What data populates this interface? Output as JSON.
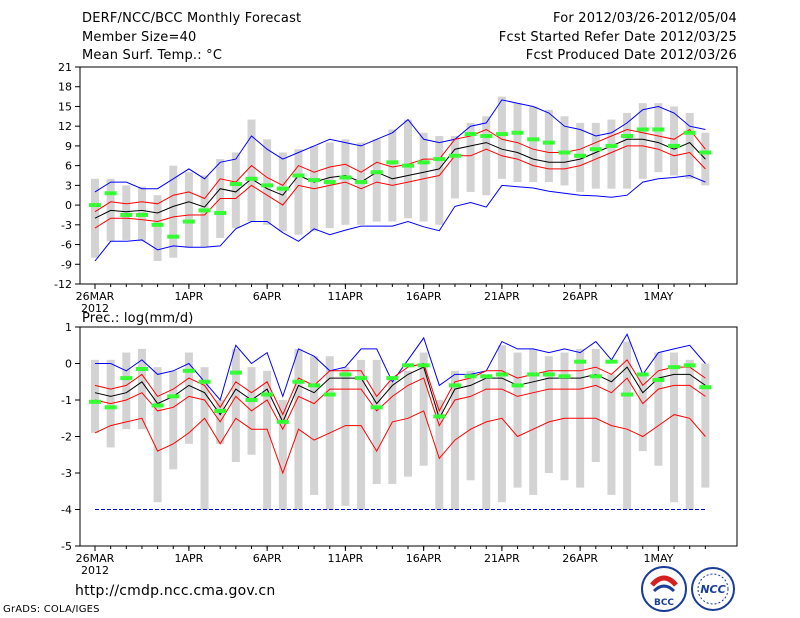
{
  "header": {
    "title": "DERF/NCC/BCC Monthly Forecast",
    "member_size": "Member Size=40",
    "variable": "Mean Surf. Temp.: °C",
    "forecast_period": "For 2012/03/26-2012/05/04",
    "fcst_started": "Fcst Started Refer Date 2012/03/25",
    "fcst_produced": "Fcst Produced Date 2012/03/26"
  },
  "panel2_title": "Prec.: log(mm/d)",
  "footer": {
    "url": "http://cmdp.ncc.cma.gov.cn",
    "grads": "GrADS: COLA/IGES",
    "logo_bcc": "BCC",
    "logo_ncc": "NCC"
  },
  "colors": {
    "bar": "#d3d3d3",
    "mean": "#000000",
    "spread": "#ff0000",
    "extreme": "#0000ff",
    "marker": "#33ff33"
  },
  "chart_data": [
    {
      "type": "line",
      "title": "Mean Surf. Temp.: °C",
      "x_start": "2012-03-26",
      "n_days": 40,
      "xtick_labels": [
        "26MAR",
        "1APR",
        "6APR",
        "11APR",
        "16APR",
        "21APR",
        "26APR",
        "1MAY"
      ],
      "xtick_day_index": [
        0,
        6,
        11,
        16,
        21,
        26,
        31,
        36
      ],
      "xtick_year": "2012",
      "ylim": [
        -12,
        21
      ],
      "yticks": [
        -12,
        -9,
        -6,
        -3,
        0,
        3,
        6,
        9,
        12,
        15,
        18,
        21
      ],
      "series": [
        {
          "name": "max",
          "color": "blue",
          "values": [
            -8.5,
            -5.5,
            -5.5,
            -5.3,
            -6.8,
            -6.2,
            -6.4,
            -6.4,
            -6.2,
            -3.6,
            -2.5,
            -2.5,
            -4.2,
            -5.5,
            -3.6,
            -4.5,
            -3.8,
            -3.2,
            -3.2,
            -3.2,
            -2.5,
            -3.3,
            -3.9,
            -0.2,
            0.4,
            -0.3,
            3.0,
            2.8,
            2.6,
            2.1,
            1.8,
            1.5,
            1.4,
            1.2,
            1.5,
            3.5,
            4.0,
            4.2,
            4.5,
            3.5
          ]
        },
        {
          "name": "mean",
          "color": "black",
          "values": [
            -2.0,
            -0.8,
            -1.0,
            -0.8,
            -1.2,
            -0.2,
            0.5,
            -0.3,
            2.5,
            2.0,
            4.0,
            2.5,
            1.5,
            4.5,
            3.5,
            4.2,
            4.5,
            3.5,
            5.0,
            4.0,
            4.5,
            5.0,
            5.5,
            8.5,
            9.0,
            9.5,
            8.5,
            8.0,
            7.0,
            6.5,
            6.5,
            7.0,
            8.0,
            9.0,
            10.0,
            10.0,
            9.5,
            8.5,
            9.5,
            7.0
          ]
        },
        {
          "name": "upper",
          "color": "red",
          "values": [
            -1.0,
            0.5,
            0.2,
            0.5,
            0.2,
            1.5,
            2.0,
            1.0,
            4.0,
            3.5,
            6.0,
            4.2,
            3.0,
            6.0,
            5.0,
            5.8,
            6.2,
            5.0,
            6.5,
            5.8,
            6.2,
            7.0,
            7.0,
            10.0,
            10.5,
            11.5,
            10.0,
            9.5,
            8.5,
            8.0,
            8.0,
            8.5,
            9.5,
            10.5,
            11.5,
            11.0,
            10.5,
            10.0,
            11.5,
            8.5
          ]
        },
        {
          "name": "lower",
          "color": "red",
          "values": [
            -3.5,
            -2.0,
            -2.0,
            -2.2,
            -2.5,
            -1.8,
            -1.5,
            -1.5,
            1.0,
            1.0,
            3.0,
            1.5,
            0.0,
            3.0,
            2.5,
            3.0,
            3.5,
            2.5,
            3.5,
            3.0,
            3.5,
            4.0,
            4.5,
            7.5,
            7.5,
            8.5,
            7.5,
            7.0,
            6.0,
            5.5,
            5.5,
            6.0,
            7.0,
            8.0,
            9.0,
            9.0,
            8.5,
            7.5,
            8.0,
            5.5
          ]
        },
        {
          "name": "min_extreme",
          "color": "blue",
          "values": [
            2.0,
            3.5,
            3.5,
            2.5,
            2.5,
            4.0,
            5.5,
            4.0,
            6.5,
            7.0,
            10.5,
            8.5,
            7.0,
            8.0,
            9.0,
            10.0,
            9.5,
            9.0,
            10.0,
            11.0,
            13.0,
            10.0,
            9.5,
            10.0,
            12.0,
            12.5,
            16.0,
            15.5,
            15.0,
            14.0,
            12.0,
            11.5,
            10.5,
            11.0,
            12.5,
            14.5,
            15.0,
            14.0,
            12.0,
            11.5
          ]
        },
        {
          "name": "observed",
          "color": "green",
          "values": [
            0.0,
            1.8,
            -1.5,
            -1.5,
            -3.0,
            -4.8,
            -2.5,
            -0.8,
            -1.2,
            3.2,
            4.0,
            3.0,
            2.5,
            4.5,
            3.8,
            3.5,
            4.2,
            3.5,
            5.0,
            6.5,
            6.0,
            6.5,
            7.0,
            7.5,
            10.8,
            10.5,
            10.8,
            11.0,
            10.0,
            9.5,
            8.0,
            7.5,
            8.5,
            9.0,
            10.5,
            11.5,
            11.5,
            9.0,
            11.0,
            8.0
          ]
        },
        {
          "name": "bar_top",
          "color": "gray",
          "values": [
            4.0,
            4.0,
            3.0,
            2.8,
            1.5,
            6.0,
            5.0,
            4.5,
            7.0,
            8.0,
            13.0,
            10.0,
            8.0,
            8.5,
            9.0,
            9.5,
            10.0,
            9.5,
            10.0,
            11.5,
            13.0,
            11.0,
            10.5,
            10.5,
            12.5,
            13.5,
            16.5,
            15.5,
            15.0,
            14.5,
            13.5,
            12.5,
            12.5,
            13.0,
            14.0,
            15.5,
            15.5,
            15.0,
            14.0,
            11.0
          ]
        },
        {
          "name": "bar_bottom",
          "color": "gray",
          "values": [
            -8.0,
            -5.5,
            -5.3,
            -5.5,
            -8.5,
            -8.0,
            -6.5,
            -6.3,
            -5.0,
            -3.5,
            -2.5,
            -3.0,
            -4.0,
            -4.5,
            -4.0,
            -3.5,
            -3.0,
            -3.0,
            -2.5,
            -2.5,
            -2.0,
            -2.5,
            -3.0,
            1.0,
            2.0,
            1.5,
            4.0,
            3.5,
            3.5,
            3.5,
            3.0,
            2.0,
            2.5,
            2.5,
            2.5,
            4.0,
            5.0,
            4.5,
            4.0,
            3.0
          ]
        }
      ]
    },
    {
      "type": "line",
      "title": "Prec.: log(mm/d)",
      "x_start": "2012-03-26",
      "n_days": 40,
      "xtick_labels": [
        "26MAR",
        "1APR",
        "6APR",
        "11APR",
        "16APR",
        "21APR",
        "26APR",
        "1MAY"
      ],
      "xtick_day_index": [
        0,
        6,
        11,
        16,
        21,
        26,
        31,
        36
      ],
      "xtick_year": "2012",
      "ylim": [
        -5,
        1
      ],
      "yticks": [
        -5,
        -4,
        -3,
        -2,
        -1,
        0,
        1
      ],
      "series": [
        {
          "name": "max",
          "color": "blue",
          "values": [
            0.0,
            0.0,
            -0.2,
            0.1,
            -0.3,
            -0.2,
            0.0,
            -0.5,
            -1.0,
            0.5,
            0.0,
            0.3,
            -0.9,
            0.4,
            0.2,
            -0.2,
            -0.1,
            0.4,
            0.4,
            -0.5,
            0.1,
            0.7,
            -0.6,
            -0.3,
            -0.3,
            -0.2,
            0.6,
            0.4,
            0.4,
            0.3,
            0.4,
            0.3,
            0.6,
            0.1,
            0.8,
            -0.3,
            0.3,
            0.4,
            0.5,
            0.0
          ]
        },
        {
          "name": "mean",
          "color": "black",
          "values": [
            -0.8,
            -0.9,
            -0.8,
            -0.5,
            -1.1,
            -0.9,
            -0.6,
            -0.8,
            -1.4,
            -0.7,
            -1.0,
            -0.7,
            -1.6,
            -0.6,
            -0.8,
            -0.4,
            -0.4,
            -0.4,
            -1.1,
            -0.6,
            -0.3,
            -0.1,
            -1.5,
            -0.7,
            -0.6,
            -0.4,
            -0.4,
            -0.6,
            -0.5,
            -0.4,
            -0.4,
            -0.4,
            -0.3,
            -0.5,
            -0.1,
            -0.8,
            -0.4,
            -0.3,
            -0.3,
            -0.6
          ]
        },
        {
          "name": "upper",
          "color": "red",
          "values": [
            -0.6,
            -0.7,
            -0.6,
            -0.3,
            -0.9,
            -0.7,
            -0.4,
            -0.6,
            -1.2,
            -0.5,
            -0.8,
            -0.5,
            -1.4,
            -0.4,
            -0.6,
            -0.2,
            -0.2,
            -0.2,
            -0.9,
            -0.4,
            -0.1,
            0.0,
            -1.3,
            -0.5,
            -0.4,
            -0.2,
            -0.2,
            -0.4,
            -0.3,
            -0.2,
            -0.2,
            -0.2,
            -0.1,
            -0.3,
            0.1,
            -0.6,
            -0.2,
            -0.1,
            -0.1,
            -0.4
          ]
        },
        {
          "name": "lower",
          "color": "red",
          "values": [
            -1.0,
            -1.1,
            -1.0,
            -0.8,
            -1.3,
            -1.2,
            -0.9,
            -1.0,
            -1.6,
            -0.9,
            -1.3,
            -1.0,
            -1.8,
            -0.9,
            -1.1,
            -0.7,
            -0.7,
            -0.7,
            -1.3,
            -0.9,
            -0.6,
            -0.4,
            -1.7,
            -1.0,
            -0.9,
            -0.7,
            -0.7,
            -0.9,
            -0.8,
            -0.7,
            -0.7,
            -0.7,
            -0.6,
            -0.8,
            -0.4,
            -1.1,
            -0.7,
            -0.6,
            -0.6,
            -0.9
          ]
        },
        {
          "name": "min",
          "color": "red",
          "values": [
            -1.9,
            -1.7,
            -1.6,
            -1.5,
            -2.4,
            -2.2,
            -1.9,
            -1.5,
            -2.2,
            -1.5,
            -1.8,
            -1.8,
            -3.0,
            -1.8,
            -2.1,
            -1.9,
            -1.7,
            -1.7,
            -2.4,
            -1.6,
            -1.5,
            -1.3,
            -2.6,
            -2.1,
            -1.8,
            -1.6,
            -1.5,
            -2.0,
            -1.8,
            -1.6,
            -1.5,
            -1.5,
            -1.5,
            -1.7,
            -1.8,
            -2.0,
            -1.7,
            -1.4,
            -1.5,
            -2.0
          ]
        },
        {
          "name": "floor",
          "color": "blue",
          "values": [
            -4.0,
            -4.0,
            -4.0,
            -4.0,
            -4.0,
            -4.0,
            -4.0,
            -4.0,
            -4.0,
            -4.0,
            -4.0,
            -4.0,
            -4.0,
            -4.0,
            -4.0,
            -4.0,
            -4.0,
            -4.0,
            -4.0,
            -4.0,
            -4.0,
            -4.0,
            -4.0,
            -4.0,
            -4.0,
            -4.0,
            -4.0,
            -4.0,
            -4.0,
            -4.0,
            -4.0,
            -4.0,
            -4.0,
            -4.0,
            -4.0,
            -4.0,
            -4.0,
            -4.0,
            -4.0,
            -4.0
          ]
        },
        {
          "name": "observed",
          "color": "green",
          "values": [
            -1.05,
            -1.2,
            -0.4,
            -0.15,
            -1.15,
            -0.9,
            -0.2,
            -0.5,
            -1.3,
            -0.25,
            -1.0,
            -0.85,
            -1.6,
            -0.5,
            -0.6,
            -0.85,
            -0.3,
            -0.4,
            -1.2,
            -0.4,
            -0.05,
            -0.05,
            -1.45,
            -0.6,
            -0.35,
            -0.35,
            -0.3,
            -0.6,
            -0.3,
            -0.3,
            -0.35,
            0.05,
            -0.35,
            0.05,
            -0.85,
            -0.3,
            -0.45,
            -0.1,
            -0.05,
            -0.65
          ]
        },
        {
          "name": "bar_top",
          "color": "gray",
          "values": [
            0.1,
            0.1,
            0.3,
            0.4,
            -0.1,
            -0.2,
            0.3,
            -0.1,
            -1.0,
            0.4,
            -0.1,
            -0.2,
            -1.0,
            0.4,
            0.2,
            0.2,
            -0.1,
            0.1,
            0.1,
            -0.4,
            -0.2,
            0.3,
            -1.0,
            -0.2,
            -0.2,
            -0.3,
            0.5,
            0.3,
            0.4,
            0.2,
            0.3,
            0.4,
            0.4,
            -0.3,
            0.6,
            -0.3,
            0.3,
            0.3,
            0.1,
            0.0
          ]
        },
        {
          "name": "bar_bottom",
          "color": "gray",
          "values": [
            -1.9,
            -2.3,
            -1.8,
            -1.8,
            -3.8,
            -2.9,
            -2.2,
            -4.0,
            -2.2,
            -2.7,
            -2.5,
            -4.0,
            -4.0,
            -4.0,
            -3.6,
            -4.0,
            -3.9,
            -4.0,
            -3.3,
            -3.3,
            -3.1,
            -2.8,
            -4.0,
            -4.0,
            -3.2,
            -4.0,
            -3.8,
            -3.4,
            -3.6,
            -3.0,
            -3.2,
            -3.4,
            -2.7,
            -3.6,
            -4.0,
            -2.4,
            -2.8,
            -3.8,
            -4.0,
            -3.4
          ]
        }
      ]
    }
  ]
}
